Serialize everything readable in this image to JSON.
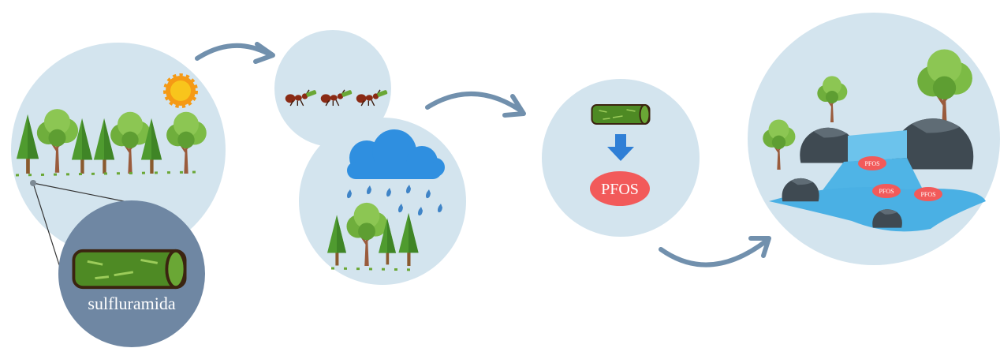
{
  "bait_label": "sulfluramida",
  "product_label": "PFOS",
  "water_labels": [
    "PFOS",
    "PFOS",
    "PFOS"
  ]
}
